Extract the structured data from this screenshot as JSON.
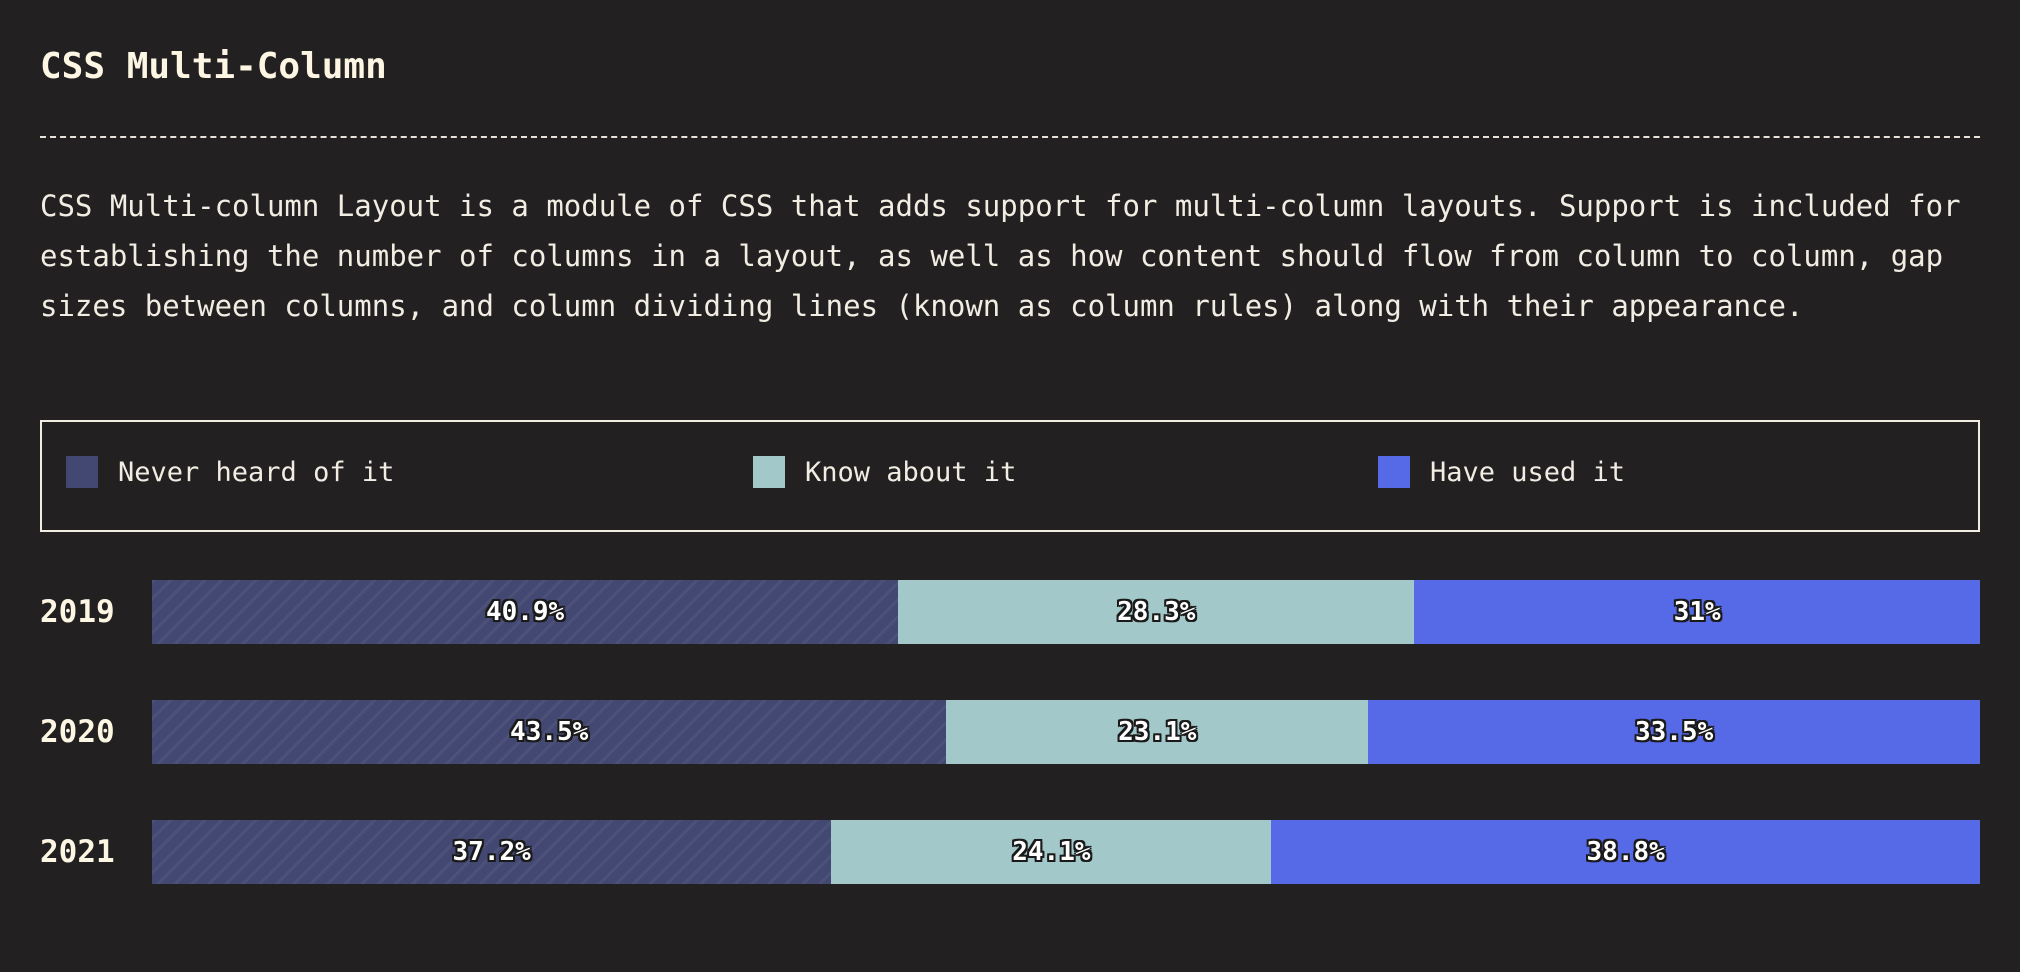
{
  "title": "CSS Multi-Column",
  "description": "CSS Multi-column Layout is a module of CSS that adds support for multi-column layouts. Support is included for establishing the number of columns in a layout, as well as how content should flow from column to column, gap sizes between columns, and column dividing lines (known as column rules) along with their appearance.",
  "legend": [
    {
      "label": "Never heard of it",
      "color": "#434872"
    },
    {
      "label": "Know about it",
      "color": "#a2c8ca"
    },
    {
      "label": "Have used it",
      "color": "#5669e6"
    }
  ],
  "chart_data": {
    "type": "bar",
    "orientation": "horizontal",
    "stacked": true,
    "percent": true,
    "categories": [
      "2019",
      "2020",
      "2021"
    ],
    "series": [
      {
        "name": "Never heard of it",
        "values": [
          40.9,
          43.5,
          37.2
        ],
        "labels": [
          "40.9%",
          "43.5%",
          "37.2%"
        ],
        "color": "#434872"
      },
      {
        "name": "Know about it",
        "values": [
          28.3,
          23.1,
          24.1
        ],
        "labels": [
          "28.3%",
          "23.1%",
          "24.1%"
        ],
        "color": "#a2c8ca"
      },
      {
        "name": "Have used it",
        "values": [
          31,
          33.5,
          38.8
        ],
        "labels": [
          "31%",
          "33.5%",
          "38.8%"
        ],
        "color": "#5669e6"
      }
    ],
    "legend_position": "top",
    "grid": false
  }
}
